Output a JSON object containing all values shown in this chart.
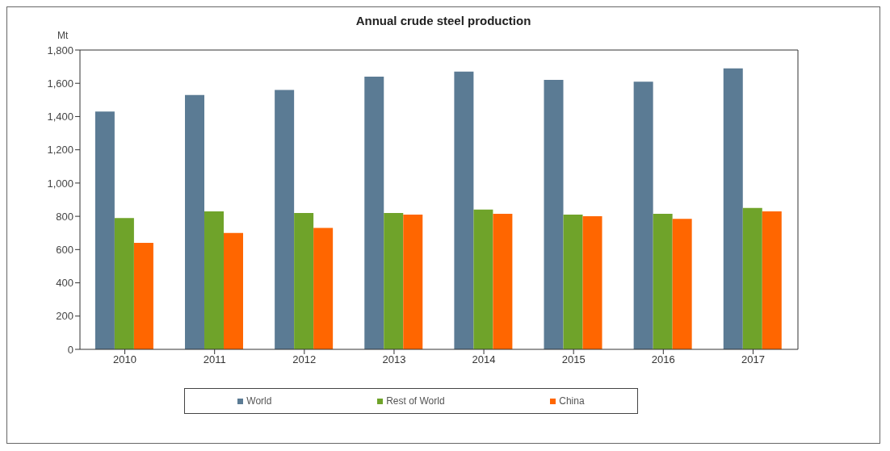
{
  "chart_data": {
    "type": "bar",
    "title": "Annual crude steel production",
    "ylabel": "Mt",
    "categories": [
      "2010",
      "2011",
      "2012",
      "2013",
      "2014",
      "2015",
      "2016",
      "2017"
    ],
    "series": [
      {
        "name": "World",
        "color": "#5b7b94",
        "values": [
          1430,
          1530,
          1560,
          1640,
          1670,
          1620,
          1610,
          1690
        ]
      },
      {
        "name": "Rest of World",
        "color": "#6fa32a",
        "values": [
          790,
          830,
          820,
          820,
          840,
          810,
          815,
          850
        ]
      },
      {
        "name": "China",
        "color": "#ff6600",
        "values": [
          640,
          700,
          730,
          810,
          815,
          800,
          785,
          830
        ]
      }
    ],
    "ylim": [
      0,
      1800
    ],
    "yticks": [
      0,
      200,
      400,
      600,
      800,
      {
        "value": 1000,
        "label": "1,000"
      },
      {
        "value": 1200,
        "label": "1,200"
      },
      {
        "value": 1400,
        "label": "1,400"
      },
      {
        "value": 1600,
        "label": "1,600"
      },
      {
        "value": 1800,
        "label": "1,800"
      }
    ],
    "grid": false,
    "legend": "bottom"
  }
}
